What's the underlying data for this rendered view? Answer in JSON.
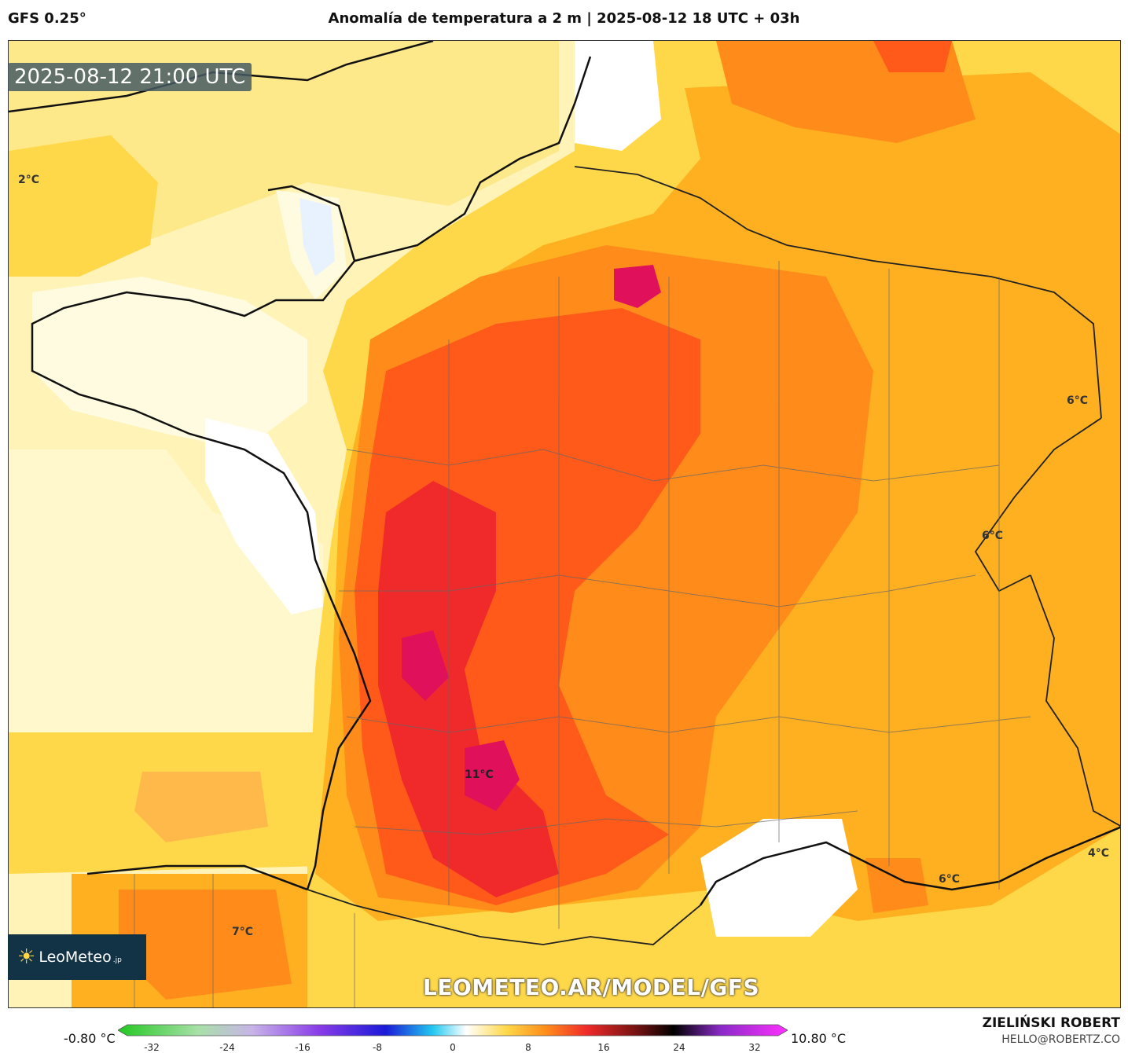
{
  "header": {
    "model": "GFS 0.25°",
    "title": "Anomalía de temperatura a 2 m | 2025-08-12 18 UTC + 03h"
  },
  "map": {
    "time_badge": "2025-08-12 21:00 UTC",
    "watermark": "LEOMETEO.AR/MODEL/GFS",
    "brand": "LeoMeteo",
    "brand_suffix": ".jp",
    "labels": [
      "2°C",
      "6°C",
      "6°C",
      "11°C",
      "7°C",
      "4°C",
      "6°C"
    ]
  },
  "colorbar": {
    "min_label": "-0.80 °C",
    "max_label": "10.80 °C",
    "ticks": [
      "-32",
      "-24",
      "-16",
      "-8",
      "0",
      "8",
      "16",
      "24",
      "32"
    ]
  },
  "credit": {
    "name": "ZIELIŃSKI ROBERT",
    "email": "HELLO@ROBERTZ.CO"
  },
  "colors": {
    "sea": "#fff0a8",
    "warm_light": "#ffd84a",
    "warm": "#ffb020",
    "orange": "#ff8c1a",
    "hot": "#ff5a1a",
    "very_hot": "#f02a2a",
    "extreme": "#e0105a"
  }
}
